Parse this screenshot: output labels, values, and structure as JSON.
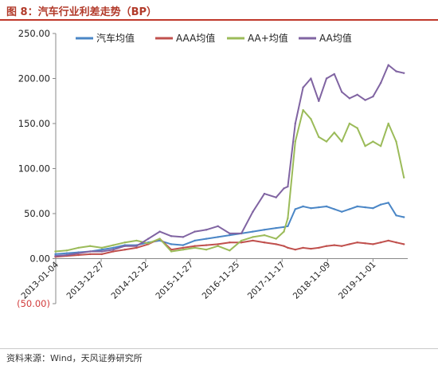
{
  "figure_title": "图 8：汽车行业利差走势（BP）",
  "source": "资料来源：Wind，天风证券研究所",
  "chart_data": {
    "type": "line",
    "title": "",
    "xlabel": "",
    "ylabel": "",
    "ylim": [
      -50,
      250
    ],
    "yticks": [
      "(50.00)",
      "0.00",
      "50.00",
      "100.00",
      "150.00",
      "200.00",
      "250.00"
    ],
    "yticks_values": [
      -50,
      0,
      50,
      100,
      150,
      200,
      250
    ],
    "xtick_labels": [
      "2013-01-04",
      "2013-12-27",
      "2014-12-12",
      "2015-11-27",
      "2016-11-25",
      "2017-11-17",
      "2018-11-09",
      "2019-11-01"
    ],
    "xlim": [
      "2013-01-04",
      "2020-07-31"
    ],
    "legend_position": "top",
    "grid": false,
    "colors": {
      "汽车均值": "#4a86c6",
      "AAA均值": "#c0504d",
      "AA+均值": "#9bbb59",
      "AA均值": "#8064a2"
    },
    "x": [
      "2013-01",
      "2013-04",
      "2013-07",
      "2013-10",
      "2014-01",
      "2014-04",
      "2014-07",
      "2014-10",
      "2015-01",
      "2015-04",
      "2015-07",
      "2015-10",
      "2016-01",
      "2016-04",
      "2016-07",
      "2016-10",
      "2017-01",
      "2017-04",
      "2017-07",
      "2017-10",
      "2017-12",
      "2018-01",
      "2018-03",
      "2018-05",
      "2018-07",
      "2018-09",
      "2018-11",
      "2019-01",
      "2019-03",
      "2019-05",
      "2019-07",
      "2019-09",
      "2019-11",
      "2020-01",
      "2020-03",
      "2020-05",
      "2020-07"
    ],
    "series": [
      {
        "name": "汽车均值",
        "values": [
          5,
          6,
          7,
          8,
          10,
          12,
          15,
          15,
          18,
          20,
          16,
          15,
          20,
          22,
          24,
          26,
          28,
          30,
          32,
          34,
          35,
          36,
          55,
          58,
          56,
          57,
          58,
          55,
          52,
          55,
          58,
          57,
          56,
          60,
          62,
          48,
          46
        ]
      },
      {
        "name": "AAA均值",
        "values": [
          2,
          3,
          4,
          5,
          5,
          8,
          10,
          12,
          16,
          22,
          10,
          12,
          14,
          15,
          16,
          18,
          18,
          20,
          18,
          16,
          14,
          12,
          10,
          12,
          11,
          12,
          14,
          15,
          14,
          16,
          18,
          17,
          16,
          18,
          20,
          18,
          16
        ]
      },
      {
        "name": "AA+均值",
        "values": [
          8,
          9,
          12,
          14,
          12,
          15,
          18,
          20,
          17,
          22,
          8,
          10,
          12,
          10,
          14,
          9,
          20,
          24,
          26,
          22,
          30,
          45,
          130,
          165,
          155,
          135,
          130,
          140,
          130,
          150,
          145,
          125,
          130,
          125,
          150,
          130,
          90
        ]
      },
      {
        "name": "AA均值",
        "values": [
          3,
          4,
          6,
          8,
          8,
          10,
          14,
          14,
          22,
          30,
          25,
          24,
          30,
          32,
          36,
          28,
          28,
          52,
          72,
          68,
          78,
          80,
          150,
          190,
          200,
          175,
          200,
          205,
          185,
          178,
          182,
          176,
          180,
          195,
          215,
          208,
          206
        ]
      }
    ]
  }
}
